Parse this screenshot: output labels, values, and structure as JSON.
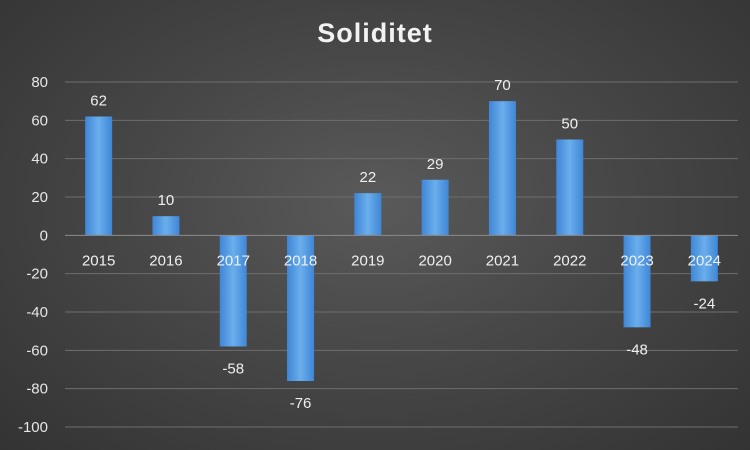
{
  "chart_data": {
    "type": "bar",
    "title": "Soliditet",
    "categories": [
      "2015",
      "2016",
      "2017",
      "2018",
      "2019",
      "2020",
      "2021",
      "2022",
      "2023",
      "2024"
    ],
    "values": [
      62,
      10,
      -58,
      -76,
      22,
      29,
      70,
      50,
      -48,
      -24
    ],
    "data_labels": [
      "62",
      "10",
      "-58",
      "-76",
      "22",
      "29",
      "70",
      "50",
      "-48",
      "-24"
    ],
    "ylim": [
      -100,
      80
    ],
    "yticks": [
      80,
      60,
      40,
      20,
      0,
      -20,
      -40,
      -60,
      -80,
      -100
    ],
    "grid": true,
    "legend": "none",
    "bar_color": "#4a90d9"
  }
}
